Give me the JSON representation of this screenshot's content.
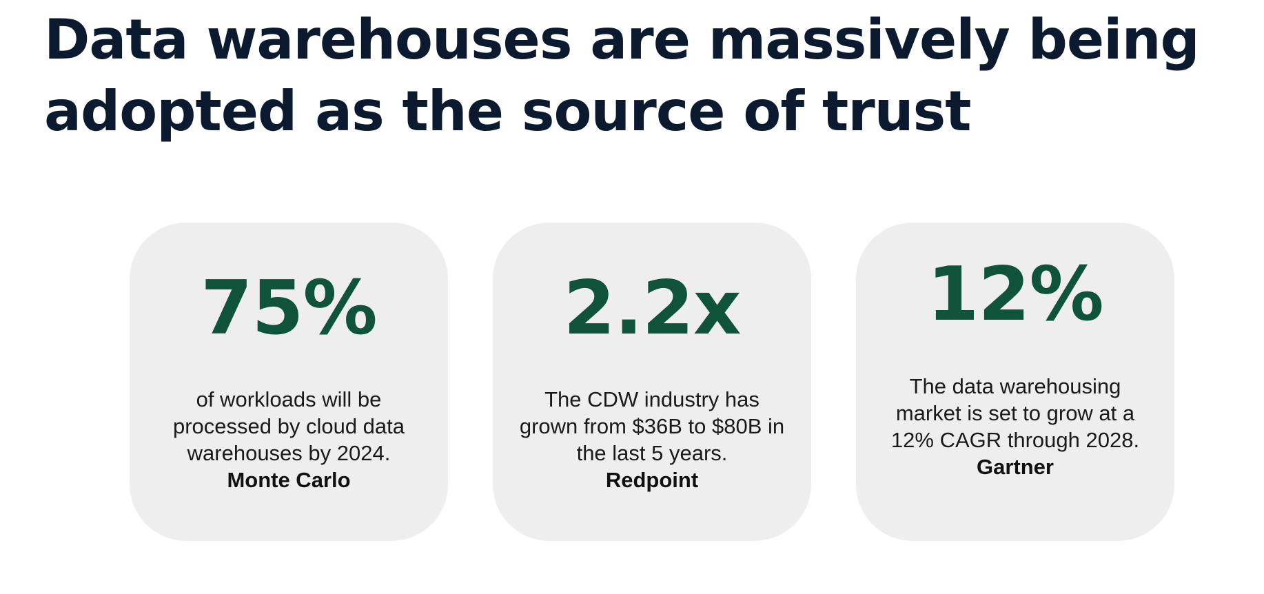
{
  "title": "Data warehouses are massively being adopted as the source of trust",
  "cards": [
    {
      "stat": "75%",
      "description": "of workloads will be processed by cloud data warehouses by 2024.",
      "source": "Monte Carlo"
    },
    {
      "stat": "2.2x",
      "description": "The CDW industry has grown from $36B to $80B in the last 5 years.",
      "source": "Redpoint"
    },
    {
      "stat": "12%",
      "description": "The data warehousing market is set to grow at a 12% CAGR through 2028.",
      "source": "Gartner"
    }
  ],
  "colors": {
    "title": "#0b1a2e",
    "stat": "#0f533a",
    "card_background": "#eeeeee"
  }
}
